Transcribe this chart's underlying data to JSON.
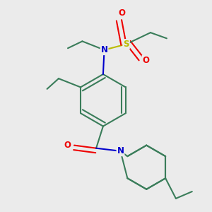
{
  "bg_color": "#ebebeb",
  "bond_color": "#3a7d5a",
  "N_color": "#0000cc",
  "O_color": "#ee0000",
  "S_color": "#bbbb00",
  "lw": 1.5,
  "figsize": [
    3.0,
    3.0
  ],
  "dpi": 100,
  "xlim": [
    -1.8,
    1.8
  ],
  "ylim": [
    -1.8,
    1.8
  ]
}
